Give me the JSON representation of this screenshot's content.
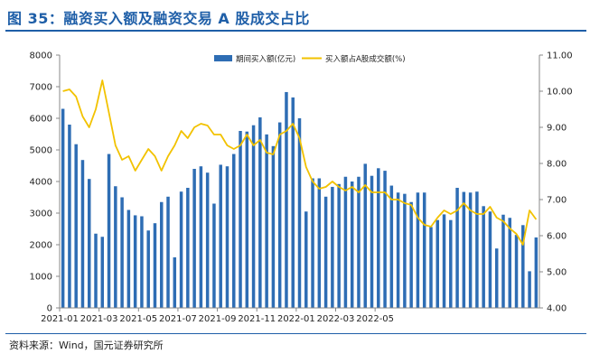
{
  "title": "图 35：融资买入额及融资交易 A 股成交占比",
  "source": "资料来源：Wind，国元证券研究所",
  "colors": {
    "bar": "#2e6db4",
    "line": "#f2c200",
    "title": "#1f5fa8"
  },
  "chart_data": {
    "type": "bar",
    "title": "图 35：融资买入额及融资交易 A 股成交占比",
    "x_tick_labels": [
      "2021-01",
      "2021-03",
      "2021-05",
      "2021-07",
      "2021-09",
      "2021-11",
      "2022-01",
      "2022-03",
      "2022-05"
    ],
    "ylim": [
      0,
      8000
    ],
    "y_ticks": [
      "0",
      "1000",
      "2000",
      "3000",
      "4000",
      "5000",
      "6000",
      "7000",
      "8000"
    ],
    "y2lim": [
      4.0,
      11.0
    ],
    "y2_ticks": [
      "4.00",
      "5.00",
      "6.00",
      "7.00",
      "8.00",
      "9.00",
      "10.00",
      "11.00"
    ],
    "legend_position": "top-right",
    "grid": false,
    "series": [
      {
        "name": "期间买入额(亿元)",
        "type": "bar",
        "axis": "left",
        "values": [
          6300,
          5800,
          5180,
          4680,
          4080,
          2350,
          2250,
          4870,
          3850,
          3500,
          3100,
          2930,
          2900,
          2450,
          2680,
          3350,
          3520,
          1600,
          3680,
          3800,
          4400,
          4480,
          4280,
          3300,
          4530,
          4480,
          4870,
          5600,
          5580,
          5780,
          6030,
          5490,
          5120,
          5870,
          6830,
          6660,
          6000,
          3050,
          4100,
          4100,
          3520,
          3830,
          3920,
          4150,
          4000,
          4150,
          4560,
          4180,
          4420,
          4340,
          3870,
          3650,
          3610,
          3350,
          3650,
          3650,
          2560,
          2780,
          2960,
          2780,
          3800,
          3670,
          3650,
          3680,
          3220,
          3050,
          1880,
          2950,
          2850,
          2310,
          2620,
          1160,
          2230
        ]
      },
      {
        "name": "买入额占A股成交额(%)",
        "type": "line",
        "axis": "right",
        "values": [
          10.0,
          10.05,
          9.85,
          9.3,
          9.0,
          9.5,
          10.3,
          9.4,
          8.5,
          8.1,
          8.2,
          7.8,
          8.1,
          8.4,
          8.2,
          7.8,
          8.2,
          8.5,
          8.9,
          8.7,
          9.0,
          9.1,
          9.05,
          8.8,
          8.8,
          8.5,
          8.4,
          8.5,
          8.8,
          8.5,
          8.65,
          8.3,
          8.25,
          8.8,
          8.9,
          9.1,
          8.7,
          7.9,
          7.5,
          7.3,
          7.35,
          7.5,
          7.35,
          7.25,
          7.35,
          7.2,
          7.4,
          7.2,
          7.2,
          7.2,
          7.0,
          7.0,
          6.9,
          6.85,
          6.5,
          6.3,
          6.25,
          6.5,
          6.7,
          6.6,
          6.7,
          6.9,
          6.7,
          6.6,
          6.6,
          6.8,
          6.5,
          6.4,
          6.2,
          6.05,
          5.75,
          6.7,
          6.45
        ]
      }
    ]
  }
}
